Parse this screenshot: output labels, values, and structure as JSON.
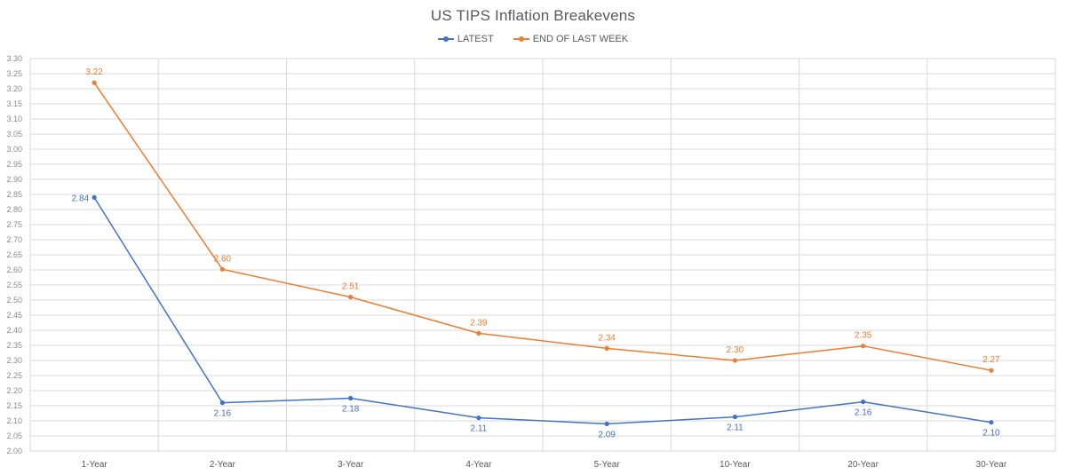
{
  "chart_data": {
    "type": "line",
    "title": "US TIPS Inflation Breakevens",
    "categories": [
      "1-Year",
      "2-Year",
      "3-Year",
      "4-Year",
      "5-Year",
      "10-Year",
      "20-Year",
      "30-Year"
    ],
    "series": [
      {
        "name": "LATEST",
        "color": "#4472C4",
        "values": [
          2.84,
          2.16,
          2.175,
          2.11,
          2.09,
          2.113,
          2.163,
          2.095
        ],
        "labels": [
          "2.84",
          "2.16",
          "2.18",
          "2.11",
          "2.09",
          "2.11",
          "2.16",
          "2.10"
        ]
      },
      {
        "name": "END OF LAST WEEK",
        "color": "#ED7D31",
        "values": [
          3.22,
          2.602,
          2.51,
          2.39,
          2.34,
          2.3,
          2.348,
          2.267
        ],
        "labels": [
          "3.22",
          "2.60",
          "2.51",
          "2.39",
          "2.34",
          "2.30",
          "2.35",
          "2.27"
        ]
      }
    ],
    "ylim": [
      2.0,
      3.3
    ],
    "ytick_step": 0.05,
    "xlabel": "",
    "ylabel": "",
    "grid": true,
    "legend_position": "top"
  }
}
